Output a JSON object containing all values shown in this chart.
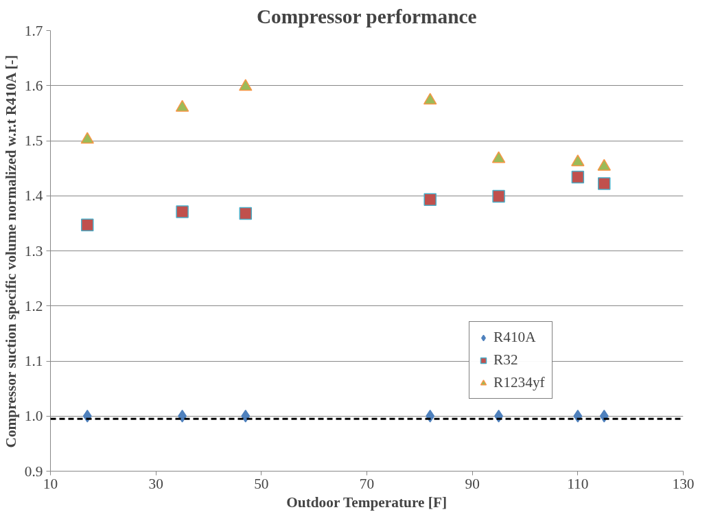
{
  "chart_data": {
    "type": "scatter",
    "title": "Compressor performance",
    "xlabel": "Outdoor Temperature [F]",
    "ylabel": "Compressor suction specific volume normalized w.r.t R410A [-]",
    "x": [
      17,
      35,
      47,
      82,
      95,
      110,
      115
    ],
    "series": [
      {
        "name": "R410A",
        "color": "#4f81bd",
        "marker": "diamond",
        "values": [
          1.0,
          1.0,
          1.0,
          1.0,
          1.0,
          1.0,
          1.0
        ]
      },
      {
        "name": "R32",
        "color": "#c0504d",
        "marker": "square",
        "values": [
          1.347,
          1.371,
          1.368,
          1.393,
          1.399,
          1.434,
          1.422
        ]
      },
      {
        "name": "R1234yf",
        "color": "#9bbb59",
        "marker": "triangle",
        "values": [
          1.502,
          1.56,
          1.598,
          1.573,
          1.467,
          1.461,
          1.453
        ]
      }
    ],
    "xlim": [
      10,
      130
    ],
    "xticks": [
      10,
      30,
      50,
      70,
      90,
      110,
      130
    ],
    "ylim": [
      0.9,
      1.7
    ],
    "yticks": [
      {
        "value": 0.9,
        "label": "0.9"
      },
      {
        "value": 1.0,
        "label": "1.0"
      },
      {
        "value": 1.1,
        "label": "1.1"
      },
      {
        "value": 1.2,
        "label": "1.2"
      },
      {
        "value": 1.3,
        "label": "1.3"
      },
      {
        "value": 1.4,
        "label": "1.4"
      },
      {
        "value": 1.5,
        "label": "1.5"
      },
      {
        "value": 1.6,
        "label": "1.6"
      },
      {
        "value": 1.7,
        "label": "1.7"
      }
    ],
    "ref_lines": [
      {
        "axis": "y",
        "value": 0.995,
        "color": "#000000",
        "line_style": "dashed"
      }
    ],
    "grid": "y",
    "legend": "right"
  }
}
